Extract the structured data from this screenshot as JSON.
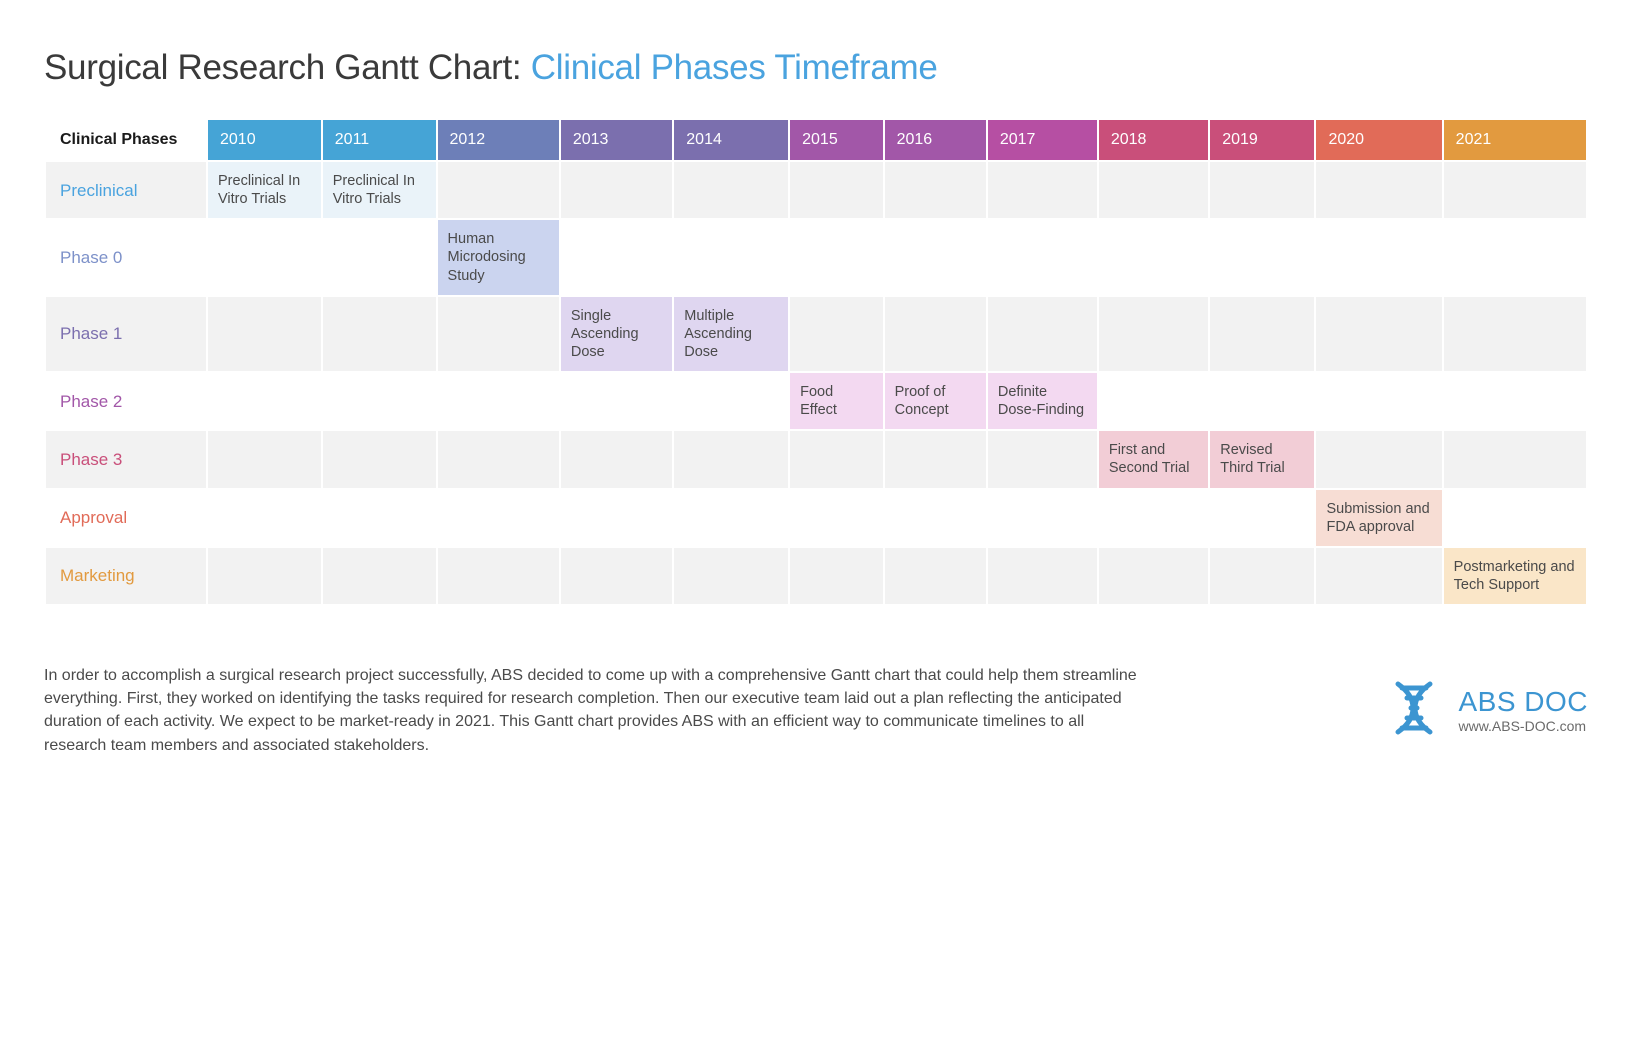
{
  "title": {
    "main": "Surgical Research Gantt Chart: ",
    "sub": "Clinical Phases Timeframe",
    "sub_color": "#4aa3df",
    "main_color": "#3a3a3a",
    "fontsize": 35
  },
  "chart": {
    "type": "gantt",
    "phase_header_label": "Clinical Phases",
    "year_label_fontsize": 16,
    "cell_fontsize": 14.5,
    "phase_label_fontsize": 17,
    "row_spacing": 2,
    "empty_cell_bg": "#f2f2f2",
    "background_color": "#ffffff",
    "years": [
      {
        "label": "2010",
        "bg": "#45a4d6"
      },
      {
        "label": "2011",
        "bg": "#45a4d6"
      },
      {
        "label": "2012",
        "bg": "#6d7fb8"
      },
      {
        "label": "2013",
        "bg": "#7b6fae"
      },
      {
        "label": "2014",
        "bg": "#7b6fae"
      },
      {
        "label": "2015",
        "bg": "#a257a8"
      },
      {
        "label": "2016",
        "bg": "#a257a8"
      },
      {
        "label": "2017",
        "bg": "#b64fa3"
      },
      {
        "label": "2018",
        "bg": "#c94f7a"
      },
      {
        "label": "2019",
        "bg": "#c94f7a"
      },
      {
        "label": "2020",
        "bg": "#e16b58"
      },
      {
        "label": "2021",
        "bg": "#e29a3f"
      }
    ],
    "phases": [
      {
        "name": "Preclinical",
        "label_color": "#4aa3df",
        "row_bg": "#f2f2f2",
        "cells": [
          {
            "year": "2010",
            "text": "Preclinical In Vitro Trials",
            "bg": "#eaf3f9"
          },
          {
            "year": "2011",
            "text": "Preclinical In Vitro Trials",
            "bg": "#eaf3f9"
          }
        ]
      },
      {
        "name": "Phase 0",
        "label_color": "#7d91c9",
        "row_bg": "#ffffff",
        "cells": [
          {
            "year": "2012",
            "text": "Human Microdosing Study",
            "bg": "#cbd4ef"
          }
        ]
      },
      {
        "name": "Phase 1",
        "label_color": "#7b6fae",
        "row_bg": "#f2f2f2",
        "cells": [
          {
            "year": "2013",
            "text": "Single Ascending Dose",
            "bg": "#dfd6f0"
          },
          {
            "year": "2014",
            "text": "Multiple Ascending Dose",
            "bg": "#dfd6f0"
          }
        ]
      },
      {
        "name": "Phase 2",
        "label_color": "#a257a8",
        "row_bg": "#ffffff",
        "cells": [
          {
            "year": "2015",
            "text": "Food Effect",
            "bg": "#f3d9f1"
          },
          {
            "year": "2016",
            "text": "Proof of Concept",
            "bg": "#f3d9f1"
          },
          {
            "year": "2017",
            "text": "Definite Dose-Finding",
            "bg": "#f3d9f1"
          }
        ]
      },
      {
        "name": "Phase 3",
        "label_color": "#c94f7a",
        "row_bg": "#f2f2f2",
        "cells": [
          {
            "year": "2018",
            "text": "First and Second Trial",
            "bg": "#f2cdd6"
          },
          {
            "year": "2019",
            "text": "Revised Third Trial",
            "bg": "#f2cdd6"
          }
        ]
      },
      {
        "name": "Approval",
        "label_color": "#e16b58",
        "row_bg": "#ffffff",
        "cells": [
          {
            "year": "2020",
            "text": "Submission and FDA approval",
            "bg": "#f7ddd4"
          }
        ]
      },
      {
        "name": "Marketing",
        "label_color": "#e29a3f",
        "row_bg": "#f2f2f2",
        "cells": [
          {
            "year": "2021",
            "text": "Postmarketing and Tech Support",
            "bg": "#fae6c8"
          }
        ]
      }
    ]
  },
  "footer": {
    "text": "In order to accomplish a surgical research project successfully, ABS decided to come up with a comprehensive Gantt chart that could help them streamline everything. First, they worked on identifying the tasks required for research completion. Then our executive team laid out a plan reflecting the anticipated duration of each activity. We expect to be market-ready in 2021. This Gantt chart provides ABS with an efficient way to communicate timelines to all research team members and associated stakeholders.",
    "text_color": "#4a4a4a",
    "text_fontsize": 16
  },
  "brand": {
    "name": "ABS DOC",
    "url": "www.ABS-DOC.com",
    "color": "#3c95d1",
    "icon_name": "dna-helix-icon",
    "name_fontsize": 28,
    "url_fontsize": 14,
    "url_color": "#6a6a6a"
  }
}
